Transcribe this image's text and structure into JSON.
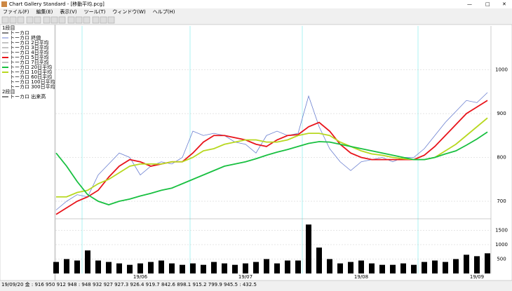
{
  "window": {
    "title": "Chart Gallery Standard - [移動平均.pcg]",
    "menu": [
      "ファイル(F)",
      "編集(E)",
      "表示(V)",
      "ツール(T)",
      "ウィンドウ(W)",
      "ヘルプ(H)"
    ]
  },
  "legend": {
    "items": [
      "1段目",
      "トーカロ",
      "トーカロ 2日平均",
      "トーカロ 3日平均",
      "トーカロ 4日平均",
      "トーカロ 7日平均",
      "トーカロ 60日平均",
      "トーカロ 100日平均",
      "トーカロ 300日平均",
      "2段目",
      "トーカロ 出来高"
    ]
  },
  "status": "19/09/20 金 : 916 950 912 948 : 948 932 927 927.3 926.4 919.7 842.6 898.1 915.2 799.9 945.5 : 432.5",
  "chart_data": [
    {
      "type": "line",
      "categories": [
        null,
        null,
        null,
        null,
        null,
        null,
        null,
        null,
        "19/06",
        null,
        null,
        null,
        null,
        null,
        null,
        null,
        null,
        null,
        "19/07",
        null,
        null,
        null,
        null,
        null,
        null,
        null,
        null,
        null,
        null,
        "19/08",
        null,
        null,
        null,
        null,
        null,
        null,
        null,
        null,
        null,
        null,
        "19/09",
        null
      ],
      "series": [
        {
          "name": "トーカロ 終値",
          "color": "#6a7fd0",
          "values": [
            680,
            700,
            715,
            710,
            760,
            785,
            810,
            800,
            760,
            780,
            790,
            785,
            800,
            860,
            850,
            855,
            850,
            835,
            830,
            810,
            850,
            860,
            850,
            855,
            940,
            870,
            820,
            790,
            770,
            790,
            795,
            800,
            790,
            800,
            800,
            820,
            850,
            880,
            905,
            930,
            925,
            948
          ]
        },
        {
          "name": "トーカロ 5日平均",
          "color": "#e8141b",
          "values": [
            670,
            685,
            700,
            710,
            725,
            755,
            780,
            795,
            790,
            780,
            785,
            790,
            790,
            810,
            835,
            850,
            850,
            845,
            840,
            830,
            825,
            840,
            850,
            852,
            870,
            880,
            860,
            830,
            810,
            800,
            795,
            795,
            795,
            795,
            795,
            805,
            825,
            850,
            875,
            900,
            915,
            930
          ]
        },
        {
          "name": "トーカロ 10日平均",
          "color": "#b8d820",
          "values": [
            710,
            710,
            720,
            725,
            740,
            750,
            765,
            780,
            785,
            785,
            785,
            790,
            790,
            800,
            815,
            820,
            830,
            835,
            840,
            840,
            835,
            835,
            840,
            850,
            855,
            855,
            850,
            835,
            825,
            815,
            808,
            805,
            800,
            797,
            795,
            795,
            800,
            815,
            830,
            850,
            870,
            890
          ]
        },
        {
          "name": "トーカロ 20日平均",
          "color": "#18c040",
          "values": [
            810,
            780,
            745,
            715,
            700,
            692,
            700,
            705,
            712,
            718,
            725,
            730,
            740,
            750,
            760,
            770,
            780,
            785,
            790,
            797,
            805,
            812,
            818,
            825,
            832,
            836,
            835,
            830,
            825,
            820,
            815,
            810,
            805,
            800,
            795,
            795,
            800,
            808,
            815,
            828,
            842,
            858
          ]
        }
      ],
      "ylim": [
        660,
        1100
      ],
      "yticks": [
        700,
        800,
        900,
        1000
      ],
      "grid": true
    },
    {
      "type": "bar",
      "color": "#000000",
      "values": [
        400,
        500,
        450,
        800,
        450,
        400,
        350,
        300,
        350,
        400,
        450,
        350,
        300,
        350,
        300,
        400,
        350,
        300,
        350,
        400,
        500,
        350,
        450,
        450,
        1700,
        900,
        500,
        350,
        400,
        450,
        350,
        300,
        300,
        350,
        300,
        400,
        450,
        400,
        500,
        650,
        600,
        700
      ],
      "ylim": [
        0,
        1900
      ],
      "yticks": [
        500,
        1000,
        1500
      ],
      "grid": true
    }
  ]
}
